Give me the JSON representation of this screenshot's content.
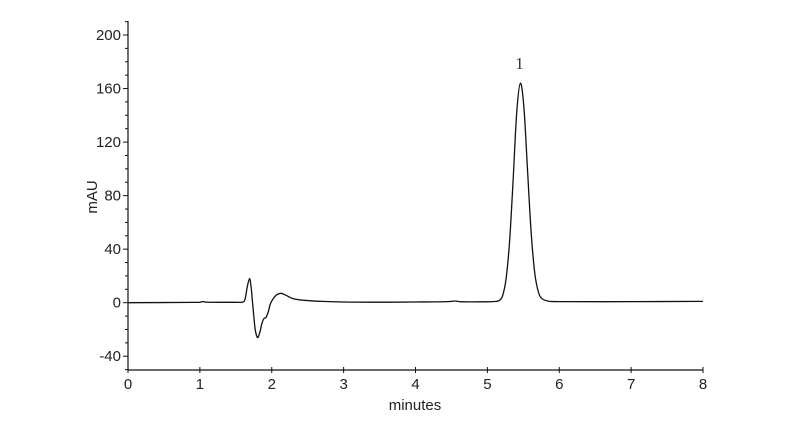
{
  "chart_data": {
    "type": "line",
    "title": "",
    "xlabel": "minutes",
    "ylabel": "mAU",
    "xlim": [
      0,
      8
    ],
    "ylim": [
      -50,
      210
    ],
    "x_ticks": [
      "0",
      "1",
      "2",
      "3",
      "4",
      "5",
      "6",
      "7",
      "8"
    ],
    "y_ticks": [
      "200",
      "160",
      "120",
      "80",
      "40",
      "0",
      "-40"
    ],
    "y_minor_step": 10,
    "grid": false,
    "line_color": "#111111",
    "annotations": [
      {
        "text": "1",
        "x": 5.46,
        "y": 164
      }
    ],
    "series": [
      {
        "points": [
          [
            0,
            0
          ],
          [
            0.9,
            0.2
          ],
          [
            1.0,
            0.4
          ],
          [
            1.05,
            0.9
          ],
          [
            1.1,
            0.4
          ],
          [
            1.5,
            0.3
          ],
          [
            1.6,
            0.5
          ],
          [
            1.63,
            3
          ],
          [
            1.66,
            12
          ],
          [
            1.69,
            18
          ],
          [
            1.71,
            13
          ],
          [
            1.73,
            2
          ],
          [
            1.75,
            -10
          ],
          [
            1.77,
            -20
          ],
          [
            1.8,
            -26
          ],
          [
            1.83,
            -23
          ],
          [
            1.86,
            -16
          ],
          [
            1.89,
            -12
          ],
          [
            1.92,
            -11
          ],
          [
            1.95,
            -7
          ],
          [
            1.98,
            -1
          ],
          [
            2.02,
            3
          ],
          [
            2.07,
            6
          ],
          [
            2.13,
            7
          ],
          [
            2.2,
            5.5
          ],
          [
            2.3,
            3
          ],
          [
            2.45,
            1.8
          ],
          [
            2.7,
            1
          ],
          [
            3.0,
            0.5
          ],
          [
            3.5,
            0.4
          ],
          [
            4.0,
            0.5
          ],
          [
            4.45,
            0.8
          ],
          [
            4.55,
            1.3
          ],
          [
            4.65,
            0.7
          ],
          [
            5.0,
            0.7
          ],
          [
            5.1,
            0.9
          ],
          [
            5.16,
            1.5
          ],
          [
            5.21,
            5
          ],
          [
            5.26,
            18
          ],
          [
            5.31,
            47
          ],
          [
            5.36,
            94
          ],
          [
            5.41,
            143
          ],
          [
            5.46,
            164
          ],
          [
            5.51,
            145
          ],
          [
            5.56,
            98
          ],
          [
            5.61,
            52
          ],
          [
            5.66,
            22
          ],
          [
            5.71,
            8
          ],
          [
            5.76,
            3
          ],
          [
            5.85,
            1.2
          ],
          [
            6.0,
            0.8
          ],
          [
            7.0,
            0.8
          ],
          [
            8.0,
            1
          ]
        ]
      }
    ]
  }
}
